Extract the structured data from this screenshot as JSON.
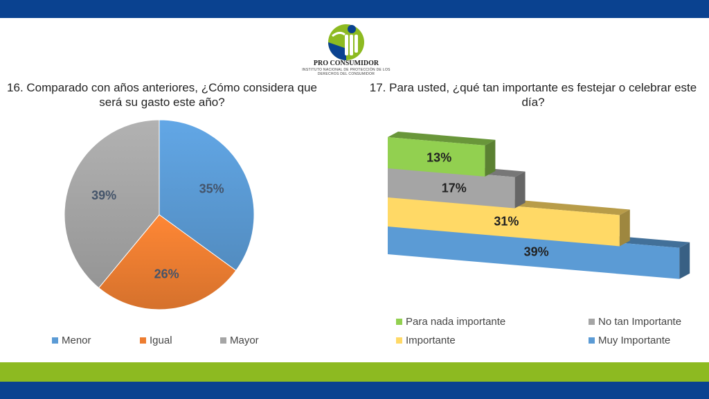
{
  "branding": {
    "org_name": "PRO CONSUMIDOR",
    "org_subtitle": "INSTITUTO NACIONAL DE PROTECCIÓN DE LOS DERECHOS DEL CONSUMIDOR",
    "colors": {
      "top_bar": "#0a4290",
      "bottom_green": "#8dba21",
      "bottom_blue": "#0a4290"
    }
  },
  "chart_data": [
    {
      "type": "pie",
      "title": "16. Comparado con años anteriores, ¿Cómo considera que será su gasto este año?",
      "categories": [
        "Menor",
        "Igual",
        "Mayor"
      ],
      "values": [
        35,
        26,
        39
      ],
      "labels": [
        "35%",
        "26%",
        "39%"
      ],
      "colors": [
        "#5b9bd5",
        "#ed7d31",
        "#a5a5a5"
      ],
      "legend_position": "bottom"
    },
    {
      "type": "bar",
      "orientation": "horizontal",
      "style": "3d-stacked-steps",
      "title": "17. Para usted, ¿qué tan importante es festejar o celebrar este día?",
      "categories": [
        "Para nada importante",
        "No tan Importante",
        "Importante",
        "Muy Importante"
      ],
      "values": [
        13,
        17,
        31,
        39
      ],
      "labels": [
        "13%",
        "17%",
        "31%",
        "39%"
      ],
      "colors": [
        "#92d050",
        "#a5a5a5",
        "#ffd966",
        "#5b9bd5"
      ],
      "legend_position": "bottom",
      "legend_order": [
        "Para nada importante",
        "No tan Importante",
        "Importante",
        "Muy Importante"
      ]
    }
  ]
}
